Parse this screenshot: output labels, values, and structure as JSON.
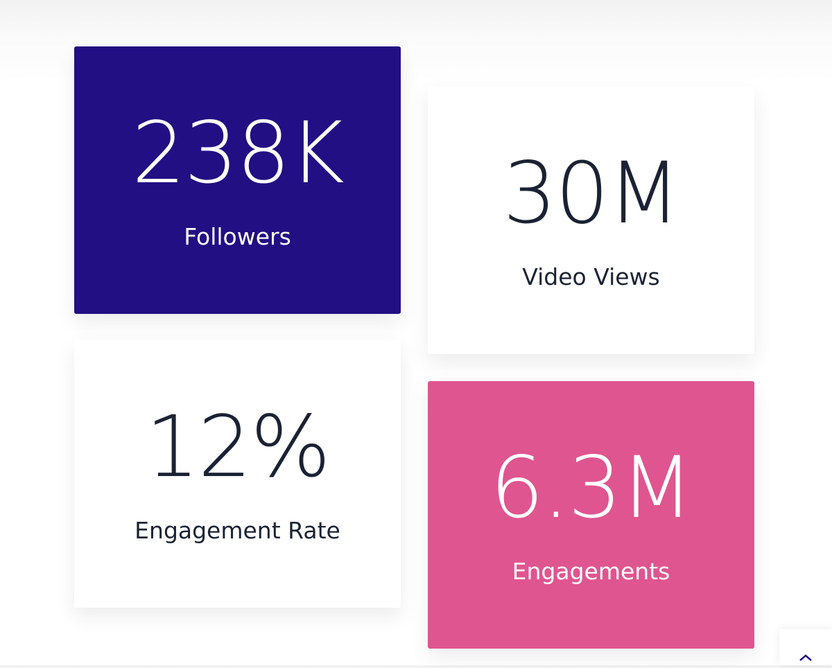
{
  "cards": [
    {
      "value": "238K",
      "label": "Followers"
    },
    {
      "value": "30M",
      "label": "Video Views"
    },
    {
      "value": "12%",
      "label": "Engagement Rate"
    },
    {
      "value": "6.3M",
      "label": "Engagements"
    }
  ]
}
